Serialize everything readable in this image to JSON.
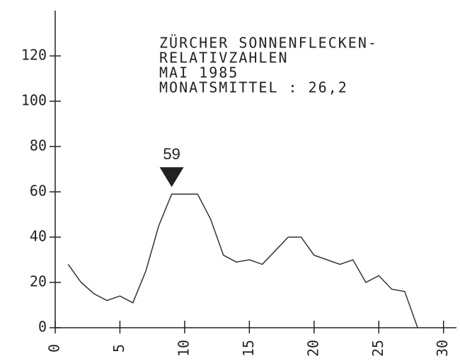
{
  "chart_data": {
    "type": "line",
    "title_lines": [
      "ZÜRCHER SONNENFLECKEN-",
      "RELATIVZAHLEN",
      "MAI 1985",
      "MONATSMITTEL : 26,2"
    ],
    "x": [
      1,
      2,
      3,
      4,
      5,
      6,
      7,
      8,
      9,
      10,
      11,
      12,
      13,
      14,
      15,
      16,
      17,
      18,
      19,
      20,
      21,
      22,
      23,
      24,
      25,
      26,
      27,
      28
    ],
    "values": [
      28,
      20,
      15,
      12,
      14,
      11,
      25,
      45,
      59,
      59,
      59,
      48,
      32,
      29,
      30,
      28,
      34,
      40,
      40,
      32,
      30,
      28,
      30,
      20,
      23,
      17,
      16,
      0
    ],
    "color": "#333333",
    "xlim": [
      0,
      31
    ],
    "xticks": [
      0,
      5,
      10,
      15,
      20,
      25,
      30
    ],
    "ylim": [
      0,
      140
    ],
    "yticks": [
      0,
      20,
      40,
      60,
      80,
      100,
      120
    ],
    "annotation": {
      "label": "59",
      "x": 9,
      "y": 59
    }
  }
}
